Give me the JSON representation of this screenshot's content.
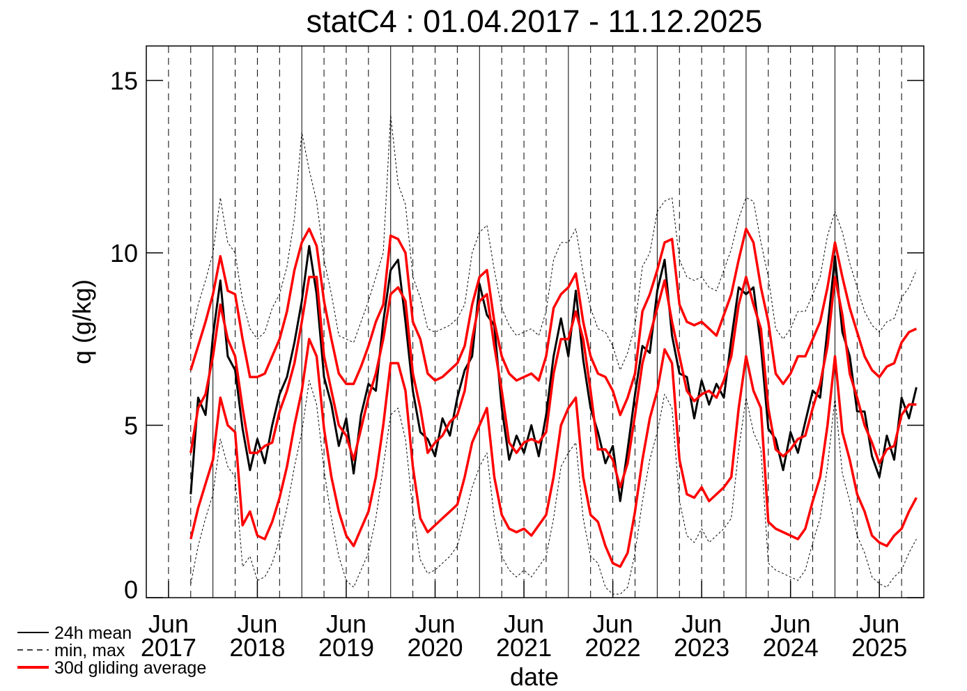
{
  "chart_data": {
    "type": "line",
    "title": "statC4 : 01.04.2017 - 11.12.2025",
    "x_label": "date",
    "y_label": "q (g/kg)",
    "xlim": [
      "2017-03",
      "2025-12"
    ],
    "xticks": [
      {
        "value": "2017-06",
        "label": "Jun 2017"
      },
      {
        "value": "2018-06",
        "label": "Jun 2018"
      },
      {
        "value": "2019-06",
        "label": "Jun 2019"
      },
      {
        "value": "2020-06",
        "label": "Jun 2020"
      },
      {
        "value": "2021-06",
        "label": "Jun 2021"
      },
      {
        "value": "2022-06",
        "label": "Jun 2022"
      },
      {
        "value": "2023-06",
        "label": "Jun 2023"
      },
      {
        "value": "2024-06",
        "label": "Jun 2024"
      },
      {
        "value": "2025-06",
        "label": "Jun 2025"
      }
    ],
    "ylim": [
      0,
      16
    ],
    "yticks": [
      0,
      5,
      10,
      15
    ],
    "legend": "lower left",
    "x": [
      "2017-09",
      "2017-10",
      "2017-11",
      "2017-12",
      "2018-01",
      "2018-02",
      "2018-03",
      "2018-04",
      "2018-05",
      "2018-06",
      "2018-07",
      "2018-08",
      "2018-09",
      "2018-10",
      "2018-11",
      "2018-12",
      "2019-01",
      "2019-02",
      "2019-03",
      "2019-04",
      "2019-05",
      "2019-06",
      "2019-07",
      "2019-08",
      "2019-09",
      "2019-10",
      "2019-11",
      "2019-12",
      "2020-01",
      "2020-02",
      "2020-03",
      "2020-04",
      "2020-05",
      "2020-06",
      "2020-07",
      "2020-08",
      "2020-09",
      "2020-10",
      "2020-11",
      "2020-12",
      "2021-01",
      "2021-02",
      "2021-03",
      "2021-04",
      "2021-05",
      "2021-06",
      "2021-07",
      "2021-08",
      "2021-09",
      "2021-10",
      "2021-11",
      "2021-12",
      "2022-01",
      "2022-02",
      "2022-03",
      "2022-04",
      "2022-05",
      "2022-06",
      "2022-07",
      "2022-08",
      "2022-09",
      "2022-10",
      "2022-11",
      "2022-12",
      "2023-01",
      "2023-02",
      "2023-03",
      "2023-04",
      "2023-05",
      "2023-06",
      "2023-07",
      "2023-08",
      "2023-09",
      "2023-10",
      "2023-11",
      "2023-12",
      "2024-01",
      "2024-02",
      "2024-03",
      "2024-04",
      "2024-05",
      "2024-06",
      "2024-07",
      "2024-08",
      "2024-09",
      "2024-10",
      "2024-11",
      "2024-12",
      "2025-01",
      "2025-02",
      "2025-03",
      "2025-04",
      "2025-05",
      "2025-06",
      "2025-07",
      "2025-08",
      "2025-09",
      "2025-10",
      "2025-11"
    ],
    "series": [
      {
        "name": "24h mean",
        "color": "#000000",
        "values": [
          3.0,
          5.8,
          5.3,
          7.6,
          9.2,
          7.0,
          6.6,
          4.9,
          3.7,
          4.6,
          3.9,
          5.0,
          5.9,
          6.4,
          7.4,
          8.6,
          10.2,
          8.8,
          6.4,
          5.6,
          4.4,
          5.2,
          3.6,
          5.3,
          6.2,
          6.0,
          8.0,
          9.5,
          9.8,
          8.0,
          6.0,
          4.8,
          4.6,
          4.1,
          5.2,
          4.7,
          5.8,
          6.6,
          7.0,
          9.1,
          8.2,
          7.9,
          5.5,
          4.0,
          4.7,
          4.2,
          5.0,
          4.1,
          5.3,
          7.0,
          8.1,
          7.0,
          8.9,
          6.9,
          5.5,
          4.8,
          3.9,
          4.4,
          2.8,
          4.3,
          5.9,
          7.3,
          7.1,
          8.9,
          9.8,
          7.6,
          6.5,
          6.4,
          5.2,
          6.3,
          5.6,
          6.2,
          5.8,
          7.5,
          9.0,
          8.8,
          9.0,
          7.3,
          4.9,
          4.6,
          3.7,
          4.8,
          4.2,
          5.1,
          6.0,
          5.8,
          7.8,
          9.9,
          7.7,
          7.0,
          5.4,
          5.4,
          4.1,
          3.5,
          4.7,
          4.0,
          5.8,
          5.2,
          6.1
        ]
      },
      {
        "name": "min, max",
        "color": "#000000",
        "dash": true,
        "min": [
          0.4,
          1.5,
          2.3,
          3.0,
          4.6,
          3.8,
          3.5,
          0.9,
          1.2,
          0.5,
          0.6,
          1.0,
          1.7,
          2.6,
          3.8,
          4.8,
          6.3,
          5.6,
          3.7,
          2.3,
          1.2,
          0.5,
          0.3,
          0.8,
          1.3,
          2.3,
          3.8,
          5.3,
          5.5,
          4.6,
          2.5,
          1.1,
          0.7,
          0.8,
          1.0,
          1.2,
          1.5,
          2.3,
          3.2,
          3.8,
          4.2,
          2.3,
          1.2,
          0.8,
          0.6,
          0.8,
          0.6,
          0.9,
          1.2,
          2.3,
          3.8,
          4.2,
          4.5,
          2.3,
          1.2,
          1.0,
          0.3,
          0.1,
          0.1,
          0.3,
          1.3,
          2.8,
          4.0,
          4.8,
          5.9,
          5.5,
          2.8,
          1.8,
          1.6,
          2.0,
          1.6,
          1.8,
          2.0,
          2.3,
          4.3,
          5.8,
          4.8,
          4.3,
          1.0,
          0.8,
          0.7,
          0.6,
          0.5,
          0.8,
          1.6,
          2.3,
          3.8,
          5.8,
          3.6,
          2.8,
          1.8,
          1.3,
          0.6,
          0.4,
          0.3,
          0.6,
          0.8,
          1.3,
          1.7
        ],
        "max": [
          7.5,
          8.5,
          9.2,
          10.0,
          11.6,
          10.3,
          10.0,
          8.6,
          7.8,
          7.5,
          7.7,
          8.4,
          8.8,
          9.6,
          11.0,
          13.5,
          12.4,
          11.5,
          9.8,
          8.8,
          7.6,
          7.5,
          7.4,
          8.0,
          8.6,
          9.3,
          10.0,
          14.0,
          12.0,
          11.4,
          9.3,
          8.7,
          7.8,
          7.7,
          7.8,
          7.9,
          8.1,
          8.5,
          10.0,
          10.6,
          10.8,
          9.5,
          8.4,
          7.9,
          7.6,
          7.7,
          7.8,
          7.6,
          8.3,
          9.8,
          10.3,
          10.3,
          10.7,
          9.4,
          8.4,
          7.8,
          7.7,
          7.3,
          6.6,
          7.1,
          7.9,
          9.6,
          10.0,
          11.2,
          11.5,
          11.6,
          9.8,
          9.3,
          9.2,
          9.3,
          9.0,
          8.9,
          9.5,
          10.1,
          11.0,
          11.6,
          11.5,
          10.3,
          9.3,
          7.8,
          7.5,
          7.8,
          8.3,
          8.3,
          8.8,
          9.3,
          10.5,
          11.2,
          10.6,
          9.7,
          9.0,
          8.3,
          7.9,
          7.7,
          8.0,
          8.1,
          8.7,
          9.0,
          9.5
        ]
      },
      {
        "name": "30d gliding average",
        "color": "#ff0000",
        "values": [
          4.2,
          5.5,
          5.9,
          7.0,
          8.5,
          7.5,
          7.0,
          5.5,
          4.2,
          4.2,
          4.4,
          4.5,
          5.4,
          6.0,
          6.8,
          8.0,
          9.3,
          9.3,
          7.0,
          6.0,
          5.0,
          4.7,
          4.0,
          4.9,
          5.8,
          6.5,
          7.5,
          8.8,
          9.0,
          8.6,
          6.5,
          5.5,
          4.2,
          4.5,
          4.7,
          5.1,
          5.3,
          6.0,
          7.5,
          8.6,
          8.8,
          7.3,
          6.0,
          4.5,
          4.2,
          4.5,
          4.6,
          4.5,
          4.8,
          6.5,
          7.5,
          7.5,
          8.3,
          7.5,
          6.0,
          4.3,
          4.3,
          4.0,
          3.2,
          3.9,
          5.3,
          6.8,
          7.6,
          8.4,
          9.2,
          8.0,
          7.0,
          6.0,
          5.7,
          5.9,
          6.0,
          5.8,
          6.3,
          7.0,
          8.5,
          9.3,
          8.5,
          7.8,
          5.5,
          4.3,
          4.1,
          4.3,
          4.6,
          4.7,
          5.5,
          6.2,
          7.3,
          9.3,
          8.2,
          6.5,
          5.8,
          5.0,
          4.5,
          3.9,
          4.3,
          4.4,
          5.3,
          5.6,
          5.6
        ],
        "min": [
          1.7,
          2.6,
          3.3,
          4.0,
          5.8,
          5.0,
          4.8,
          2.1,
          2.5,
          1.8,
          1.7,
          2.2,
          2.9,
          3.8,
          5.0,
          6.0,
          7.5,
          7.0,
          4.9,
          3.5,
          2.5,
          1.8,
          1.5,
          2.0,
          2.5,
          3.5,
          5.0,
          6.8,
          6.8,
          6.0,
          3.8,
          2.3,
          1.9,
          2.1,
          2.3,
          2.5,
          2.7,
          3.5,
          4.5,
          5.0,
          5.5,
          3.5,
          2.4,
          2.0,
          1.9,
          2.0,
          1.8,
          2.1,
          2.4,
          3.5,
          5.0,
          5.5,
          5.8,
          3.5,
          2.4,
          2.2,
          1.5,
          1.0,
          0.9,
          1.3,
          2.5,
          4.0,
          5.2,
          6.0,
          7.2,
          6.8,
          4.0,
          3.0,
          2.9,
          3.2,
          2.8,
          3.0,
          3.2,
          3.5,
          5.5,
          7.0,
          6.0,
          5.5,
          2.2,
          2.0,
          1.9,
          1.8,
          1.7,
          2.0,
          2.8,
          3.5,
          5.0,
          7.0,
          4.8,
          4.0,
          3.0,
          2.5,
          1.8,
          1.6,
          1.5,
          1.8,
          2.0,
          2.5,
          2.9
        ],
        "max": [
          6.6,
          7.3,
          8.0,
          8.8,
          9.9,
          8.9,
          8.8,
          7.5,
          6.4,
          6.4,
          6.5,
          7.0,
          7.5,
          8.3,
          9.5,
          10.3,
          10.7,
          10.2,
          8.6,
          7.5,
          6.5,
          6.2,
          6.2,
          6.7,
          7.3,
          8.0,
          8.5,
          10.5,
          10.4,
          10.0,
          8.0,
          7.5,
          6.5,
          6.3,
          6.4,
          6.6,
          6.8,
          7.3,
          8.5,
          9.3,
          9.5,
          8.0,
          7.0,
          6.5,
          6.3,
          6.4,
          6.5,
          6.3,
          7.0,
          8.4,
          8.8,
          9.0,
          9.4,
          8.0,
          7.0,
          6.5,
          6.4,
          6.0,
          5.3,
          5.8,
          6.5,
          8.3,
          8.8,
          9.5,
          10.3,
          10.4,
          8.5,
          8.0,
          7.9,
          8.0,
          7.8,
          7.6,
          8.2,
          8.8,
          9.8,
          10.7,
          10.3,
          9.0,
          8.0,
          6.5,
          6.2,
          6.5,
          7.0,
          7.0,
          7.5,
          8.0,
          9.0,
          10.3,
          9.3,
          8.4,
          7.7,
          7.0,
          6.6,
          6.4,
          6.7,
          6.8,
          7.4,
          7.7,
          7.8
        ]
      }
    ]
  }
}
